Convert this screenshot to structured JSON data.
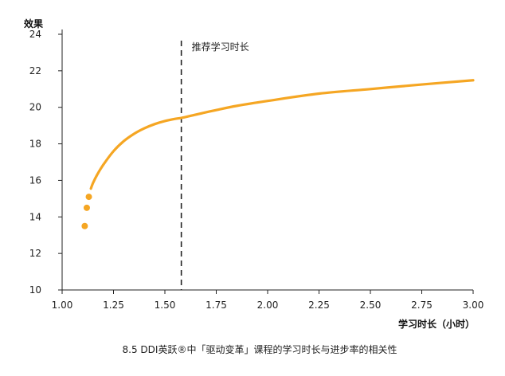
{
  "chart_data": {
    "type": "line",
    "title": "",
    "caption": "8.5 DDI英跃®中「驱动变革」课程的学习时长与进步率的相关性",
    "xlabel": "学习时长（小时）",
    "ylabel": "效果",
    "xlim": [
      1.0,
      3.0
    ],
    "ylim": [
      10,
      24
    ],
    "x_ticks": [
      "1.00",
      "1.25",
      "1.50",
      "1.75",
      "2.00",
      "2.25",
      "2.50",
      "2.75",
      "3.00"
    ],
    "y_ticks": [
      "10",
      "12",
      "14",
      "16",
      "18",
      "20",
      "22",
      "24"
    ],
    "grid": false,
    "legend": "none",
    "series": [
      {
        "kind": "points",
        "x": [
          1.11,
          1.12,
          1.13
        ],
        "y": [
          13.5,
          14.5,
          15.1
        ]
      },
      {
        "kind": "curve",
        "x": [
          1.14,
          1.15,
          1.17,
          1.2,
          1.25,
          1.3,
          1.35,
          1.4,
          1.45,
          1.5,
          1.55,
          1.58,
          1.65,
          1.75,
          1.85,
          2.0,
          2.25,
          2.5,
          2.75,
          3.0
        ],
        "y": [
          15.55,
          15.85,
          16.3,
          16.85,
          17.6,
          18.15,
          18.55,
          18.85,
          19.08,
          19.25,
          19.37,
          19.42,
          19.6,
          19.85,
          20.08,
          20.35,
          20.75,
          21.0,
          21.25,
          21.48
        ]
      }
    ],
    "reference_line": {
      "x": 1.58,
      "style": "dashed",
      "label": "推荐学习时长"
    },
    "colors": {
      "series": "#F5A623",
      "reference": "#222222",
      "axis": "#222222"
    }
  }
}
